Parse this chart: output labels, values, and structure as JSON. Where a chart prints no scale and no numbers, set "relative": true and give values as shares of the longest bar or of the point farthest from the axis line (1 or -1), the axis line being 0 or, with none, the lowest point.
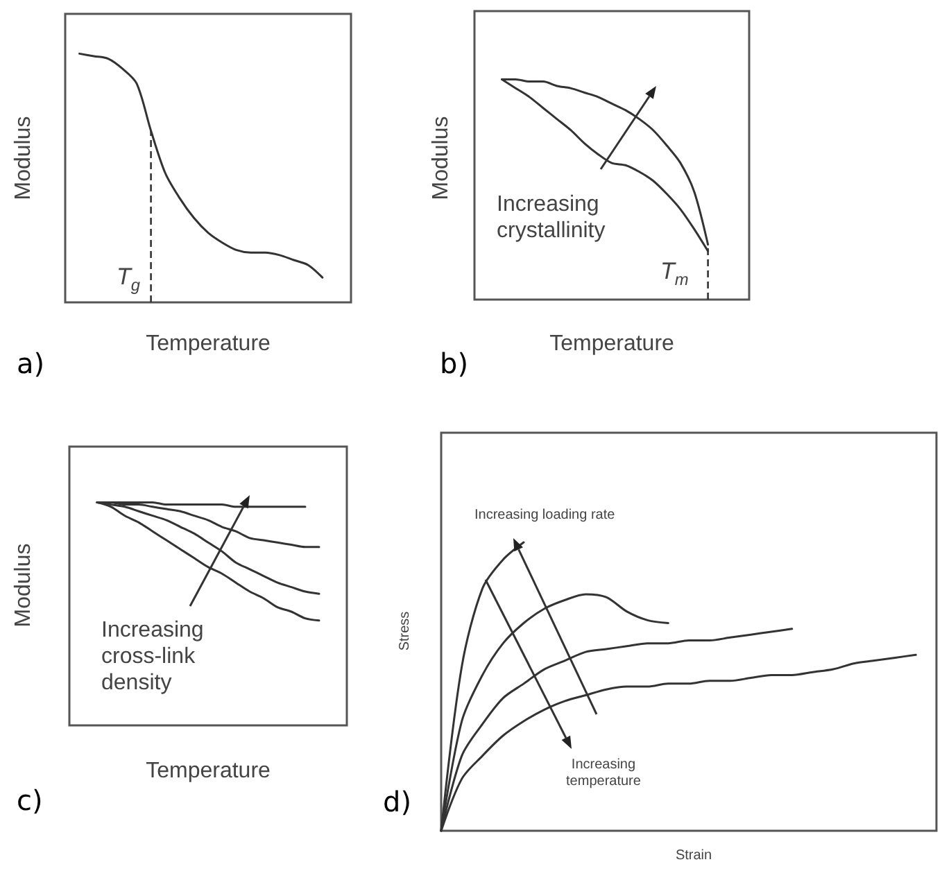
{
  "chart_data": [
    {
      "type": "line",
      "relative": true,
      "xlabel": "Temperature",
      "ylabel": "Modulus",
      "marker": "none",
      "categories": [
        null,
        null,
        null,
        null,
        null,
        null,
        null,
        null,
        null,
        null,
        null,
        null,
        null,
        null,
        null,
        null,
        null,
        null,
        null,
        null,
        null
      ],
      "series": [
        {
          "color": "#333333",
          "values": [
            null,
            1.0,
            0.99,
            0.98,
            0.94,
            0.88,
            0.69,
            0.52,
            0.42,
            0.34,
            0.28,
            0.24,
            0.21,
            0.2,
            0.2,
            0.19,
            0.17,
            0.15,
            0.1,
            null,
            null
          ]
        }
      ],
      "annotations": [
        "T$_{g}$",
        "a)"
      ]
    },
    {
      "type": "line",
      "relative": true,
      "xlabel": "Temperature",
      "ylabel": "Modulus",
      "marker": "none",
      "categories": [
        null,
        null,
        null,
        null,
        null,
        null,
        null,
        null,
        null,
        null,
        null,
        null,
        null,
        null,
        null,
        null,
        null,
        null,
        null,
        null,
        null
      ],
      "series": [
        {
          "color": "#333333",
          "values": [
            null,
            null,
            1,
            1,
            0.99,
            0.99,
            0.97,
            0.96,
            0.94,
            0.92,
            0.89,
            0.86,
            0.82,
            0.77,
            0.7,
            0.62,
            0.49,
            0.25,
            null,
            null,
            null
          ]
        },
        {
          "color": "#333333",
          "values": [
            null,
            null,
            1,
            0.96,
            0.92,
            0.87,
            0.82,
            0.77,
            0.71,
            0.66,
            0.62,
            0.61,
            0.58,
            0.54,
            0.48,
            0.41,
            0.32,
            0.22,
            null,
            null,
            null
          ]
        }
      ],
      "annotations": [
        "Increasing crystallinity",
        "T$_{m}$",
        "b)"
      ]
    },
    {
      "type": "line",
      "relative": true,
      "xlabel": "Temperature",
      "ylabel": "Modulus",
      "marker": "none",
      "categories": [
        null,
        null,
        null,
        null,
        null,
        null,
        null,
        null,
        null,
        null,
        null,
        null,
        null,
        null,
        null,
        null,
        null,
        null,
        null,
        null,
        null
      ],
      "series": [
        {
          "color": "#333333",
          "values": [
            null,
            null,
            1,
            1,
            1,
            1,
            1,
            0.99,
            0.99,
            0.99,
            0.99,
            0.99,
            0.98,
            0.98,
            0.98,
            0.98,
            0.98,
            0.98,
            null,
            null,
            null
          ]
        },
        {
          "color": "#333333",
          "values": [
            null,
            null,
            1,
            1,
            0.99,
            0.99,
            0.98,
            0.97,
            0.96,
            0.94,
            0.92,
            0.89,
            0.87,
            0.84,
            0.83,
            0.82,
            0.81,
            0.8,
            0.8,
            null,
            null
          ]
        },
        {
          "color": "#333333",
          "values": [
            null,
            null,
            1,
            0.99,
            0.98,
            0.96,
            0.94,
            0.92,
            0.89,
            0.86,
            0.82,
            0.78,
            0.73,
            0.7,
            0.67,
            0.64,
            0.62,
            0.6,
            0.59,
            null,
            null
          ]
        },
        {
          "color": "#333333",
          "values": [
            null,
            null,
            1,
            0.98,
            0.94,
            0.91,
            0.87,
            0.83,
            0.79,
            0.75,
            0.71,
            0.68,
            0.64,
            0.6,
            0.57,
            0.53,
            0.51,
            0.48,
            0.47,
            null,
            null
          ]
        }
      ],
      "annotations": [
        "Increasing cross-link density",
        "c)"
      ]
    },
    {
      "type": "line",
      "relative": true,
      "xlabel": "Strain",
      "ylabel": "Stress",
      "marker": "none",
      "categories": [
        null,
        null,
        null,
        null,
        null,
        null,
        null,
        null,
        null,
        null,
        null,
        null,
        null,
        null,
        null,
        null,
        null,
        null,
        null,
        null,
        null,
        null,
        null,
        null,
        null
      ],
      "series": [
        {
          "color": "#333333",
          "values": [
            0,
            0.57,
            0.84,
            0.94,
            1,
            null,
            null,
            null,
            null,
            null,
            null,
            null,
            null,
            null,
            null,
            null,
            null,
            null,
            null,
            null,
            null,
            null,
            null,
            null,
            null
          ]
        },
        {
          "color": "#333333",
          "values": [
            0,
            0.38,
            0.54,
            0.65,
            0.72,
            0.77,
            0.8,
            0.82,
            0.81,
            0.76,
            0.73,
            0.72,
            null,
            null,
            null,
            null,
            null,
            null,
            null,
            null,
            null,
            null,
            null,
            null,
            null
          ]
        },
        {
          "color": "#333333",
          "values": [
            0,
            0.26,
            0.37,
            0.46,
            0.51,
            0.56,
            0.59,
            0.62,
            0.63,
            0.64,
            0.65,
            0.65,
            0.66,
            0.66,
            0.67,
            0.68,
            0.69,
            0.7,
            null,
            null,
            null,
            null,
            null,
            null,
            null
          ]
        },
        {
          "color": "#333333",
          "values": [
            0,
            0.18,
            0.26,
            0.33,
            0.38,
            0.42,
            0.45,
            0.47,
            0.49,
            0.5,
            0.5,
            0.51,
            0.51,
            0.52,
            0.52,
            0.53,
            0.54,
            0.54,
            0.55,
            0.56,
            0.58,
            0.59,
            0.6,
            0.61,
            null
          ]
        }
      ],
      "annotations": [
        "Increasing loading rate",
        "Increasing temperature",
        "d)"
      ]
    }
  ]
}
